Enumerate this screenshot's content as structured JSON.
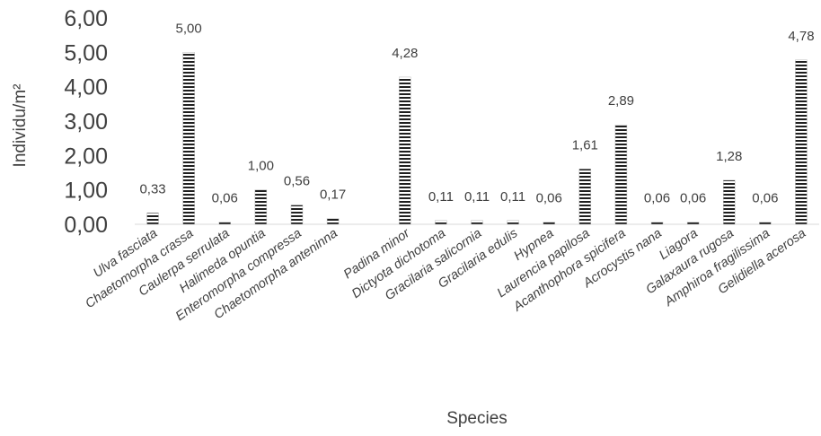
{
  "chart_data": {
    "type": "bar",
    "title": "",
    "xlabel": "Species",
    "ylabel": "Individu/m²",
    "ylim": [
      0,
      6
    ],
    "ytick_step": 1,
    "ytick_labels": [
      "0,00",
      "1,00",
      "2,00",
      "3,00",
      "4,00",
      "5,00",
      "6,00"
    ],
    "grid": false,
    "bar_pattern": "horizontal-stripes",
    "bar_color": "#1f1f1f",
    "categories": [
      "Ulva fasciata",
      "Chaetomorpha crassa",
      "Caulerpa serrulata",
      "Halimeda opuntia",
      "Enteromorpha compressa",
      "Chaetomorpha anteninna",
      "",
      "Padina minor",
      "Dictyota dichotoma",
      "Gracilaria salicornia",
      "Gracilaria edulis",
      "Hypnea",
      "Laurencia papilosa",
      "Acanthophora spicifera",
      "Acrocystis nana",
      "Liagora",
      "Galaxaura rugosa",
      "Amphiroa fragilissima",
      "Gelidiella acerosa"
    ],
    "values": [
      0.33,
      5.0,
      0.06,
      1.0,
      0.56,
      0.17,
      null,
      4.28,
      0.11,
      0.11,
      0.11,
      0.06,
      1.61,
      2.89,
      0.06,
      0.06,
      1.28,
      0.06,
      4.78
    ],
    "data_labels": [
      "0,33",
      "5,00",
      "0,06",
      "1,00",
      "0,56",
      "0,17",
      "",
      "4,28",
      "0,11",
      "0,11",
      "0,11",
      "0,06",
      "1,61",
      "2,89",
      "0,06",
      "0,06",
      "1,28",
      "0,06",
      "4,78"
    ]
  }
}
